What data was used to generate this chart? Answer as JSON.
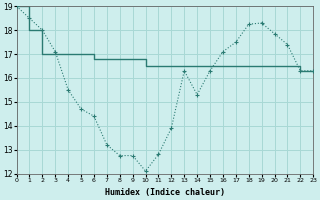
{
  "xlabel": "Humidex (Indice chaleur)",
  "background_color": "#ceeeed",
  "grid_color": "#a8d8d5",
  "line_color": "#2a7a72",
  "line1_x": [
    0,
    1,
    2,
    3,
    4,
    5,
    6,
    7,
    8,
    9,
    10,
    11,
    12,
    13,
    14,
    15,
    16,
    17,
    18,
    19,
    20,
    21,
    22,
    23
  ],
  "line1_y": [
    19.0,
    18.5,
    18.0,
    17.1,
    15.5,
    14.7,
    14.4,
    13.2,
    12.75,
    12.75,
    12.1,
    12.8,
    13.9,
    16.3,
    15.3,
    16.3,
    17.1,
    17.5,
    18.25,
    18.3,
    17.85,
    17.4,
    16.3,
    16.3
  ],
  "line2_x": [
    0,
    1,
    2,
    3,
    4,
    5,
    6,
    7,
    8,
    9,
    10,
    11,
    12,
    13,
    14,
    15,
    16,
    17,
    18,
    19,
    20,
    21,
    22,
    23
  ],
  "line2_y": [
    19.0,
    18.0,
    17.0,
    17.0,
    17.0,
    17.0,
    16.8,
    16.8,
    16.8,
    16.8,
    16.5,
    16.5,
    16.5,
    16.5,
    16.5,
    16.5,
    16.5,
    16.5,
    16.5,
    16.5,
    16.5,
    16.5,
    16.3,
    16.3
  ],
  "xlim": [
    0,
    23
  ],
  "ylim": [
    12,
    19
  ],
  "yticks": [
    12,
    13,
    14,
    15,
    16,
    17,
    18,
    19
  ],
  "xticks": [
    0,
    1,
    2,
    3,
    4,
    5,
    6,
    7,
    8,
    9,
    10,
    11,
    12,
    13,
    14,
    15,
    16,
    17,
    18,
    19,
    20,
    21,
    22,
    23
  ],
  "xtick_labels": [
    "0",
    "1",
    "2",
    "3",
    "4",
    "5",
    "6",
    "7",
    "8",
    "9",
    "10",
    "11",
    "12",
    "13",
    "14",
    "15",
    "16",
    "17",
    "18",
    "19",
    "20",
    "21",
    "22",
    "23"
  ]
}
